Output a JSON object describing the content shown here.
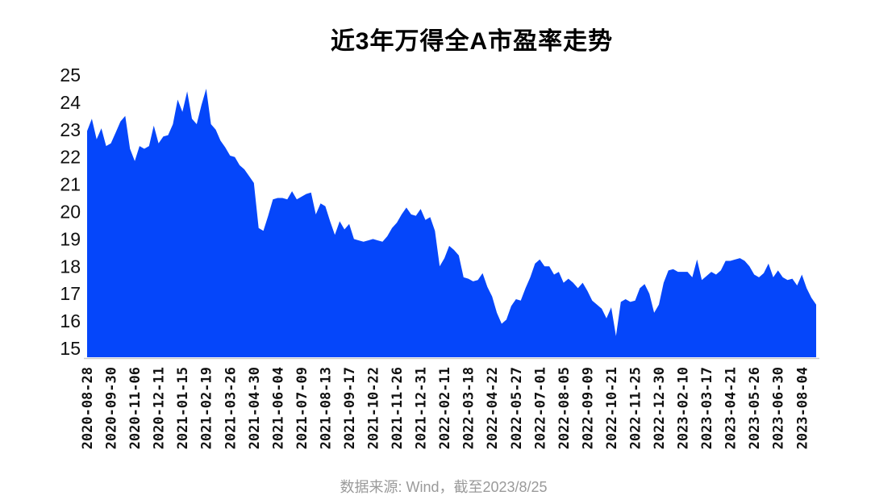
{
  "chart_data": {
    "type": "area",
    "title": "近3年万得全A市盈率走势",
    "source_note": "数据来源: Wind，截至2023/8/25",
    "x_labels": [
      "2020-08-28",
      "2020-09-30",
      "2020-11-06",
      "2020-12-11",
      "2021-01-15",
      "2021-02-19",
      "2021-03-26",
      "2021-04-30",
      "2021-06-04",
      "2021-07-09",
      "2021-08-13",
      "2021-09-17",
      "2021-10-22",
      "2021-11-26",
      "2021-12-31",
      "2022-02-11",
      "2022-03-18",
      "2022-04-22",
      "2022-05-27",
      "2022-07-01",
      "2022-08-05",
      "2022-09-09",
      "2022-10-21",
      "2022-11-25",
      "2022-12-30",
      "2023-02-10",
      "2023-03-17",
      "2023-04-21",
      "2023-05-26",
      "2023-06-30",
      "2023-08-04"
    ],
    "x_label_every": 5,
    "values": [
      22.95,
      23.4,
      22.65,
      23.05,
      22.4,
      22.5,
      22.9,
      23.3,
      23.5,
      22.3,
      21.85,
      22.4,
      22.3,
      22.4,
      23.15,
      22.5,
      22.75,
      22.8,
      23.2,
      24.1,
      23.65,
      24.4,
      23.4,
      23.2,
      23.9,
      24.5,
      23.2,
      23.0,
      22.6,
      22.35,
      22.05,
      22.0,
      21.7,
      21.55,
      21.3,
      21.05,
      19.4,
      19.3,
      19.85,
      20.45,
      20.5,
      20.5,
      20.45,
      20.75,
      20.45,
      20.55,
      20.65,
      20.7,
      19.9,
      20.3,
      20.2,
      19.65,
      19.15,
      19.65,
      19.35,
      19.55,
      19.0,
      18.95,
      18.9,
      18.95,
      19.0,
      18.95,
      18.9,
      19.1,
      19.4,
      19.6,
      19.9,
      20.15,
      19.9,
      19.85,
      20.1,
      19.7,
      19.8,
      19.3,
      18.0,
      18.3,
      18.75,
      18.6,
      18.4,
      17.6,
      17.55,
      17.45,
      17.5,
      17.75,
      17.25,
      16.9,
      16.3,
      15.9,
      16.05,
      16.55,
      16.8,
      16.75,
      17.2,
      17.6,
      18.1,
      18.25,
      18.0,
      18.0,
      17.7,
      17.8,
      17.4,
      17.55,
      17.4,
      17.2,
      17.4,
      17.1,
      16.75,
      16.6,
      16.45,
      16.1,
      16.5,
      15.45,
      16.7,
      16.8,
      16.7,
      16.75,
      17.2,
      17.35,
      17.0,
      16.3,
      16.6,
      17.4,
      17.85,
      17.9,
      17.8,
      17.8,
      17.8,
      17.6,
      18.25,
      17.5,
      17.65,
      17.8,
      17.7,
      17.85,
      18.2,
      18.2,
      18.25,
      18.3,
      18.2,
      18.0,
      17.7,
      17.6,
      17.75,
      18.1,
      17.6,
      17.85,
      17.6,
      17.5,
      17.55,
      17.3,
      17.7,
      17.2,
      16.85,
      16.6
    ],
    "y_ticks": [
      15,
      16,
      17,
      18,
      19,
      20,
      21,
      22,
      23,
      24,
      25
    ],
    "ylim": [
      14.7,
      25.3
    ],
    "grid": false,
    "legend": false,
    "colors": {
      "area": "#0546fa",
      "axis_line": "#c9c9c9",
      "tick_label": "#111111",
      "title": "#000000",
      "source": "#9a9a9a"
    }
  }
}
